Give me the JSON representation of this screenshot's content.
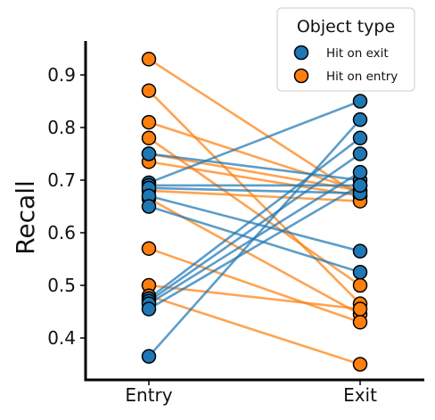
{
  "chart_data": {
    "type": "scatter",
    "title": "",
    "xlabel": "",
    "ylabel": "Recall",
    "categories": [
      "Entry",
      "Exit"
    ],
    "ylim": [
      0.32,
      0.96
    ],
    "yticks": [
      "0.4",
      "0.5",
      "0.6",
      "0.7",
      "0.8",
      "0.9"
    ],
    "grid": false,
    "legend": {
      "title": "Object type",
      "placement": "top-right",
      "entries": [
        {
          "name": "Hit on exit",
          "color": "#1f77b4"
        },
        {
          "name": "Hit on entry",
          "color": "#ff7f0e"
        }
      ]
    },
    "series": [
      {
        "name": "Hit on exit",
        "color": "#1f77b4",
        "pairs": [
          [
            0.75,
            0.7
          ],
          [
            0.695,
            0.85
          ],
          [
            0.69,
            0.69
          ],
          [
            0.685,
            0.675
          ],
          [
            0.67,
            0.565
          ],
          [
            0.65,
            0.525
          ],
          [
            0.475,
            0.78
          ],
          [
            0.47,
            0.75
          ],
          [
            0.465,
            0.715
          ],
          [
            0.455,
            0.69
          ],
          [
            0.365,
            0.815
          ]
        ]
      },
      {
        "name": "Hit on entry",
        "color": "#ff7f0e",
        "pairs": [
          [
            0.93,
            0.67
          ],
          [
            0.87,
            0.465
          ],
          [
            0.81,
            0.68
          ],
          [
            0.78,
            0.5
          ],
          [
            0.75,
            0.68
          ],
          [
            0.735,
            0.67
          ],
          [
            0.68,
            0.66
          ],
          [
            0.665,
            0.445
          ],
          [
            0.57,
            0.43
          ],
          [
            0.5,
            0.455
          ],
          [
            0.48,
            0.35
          ]
        ]
      }
    ]
  }
}
